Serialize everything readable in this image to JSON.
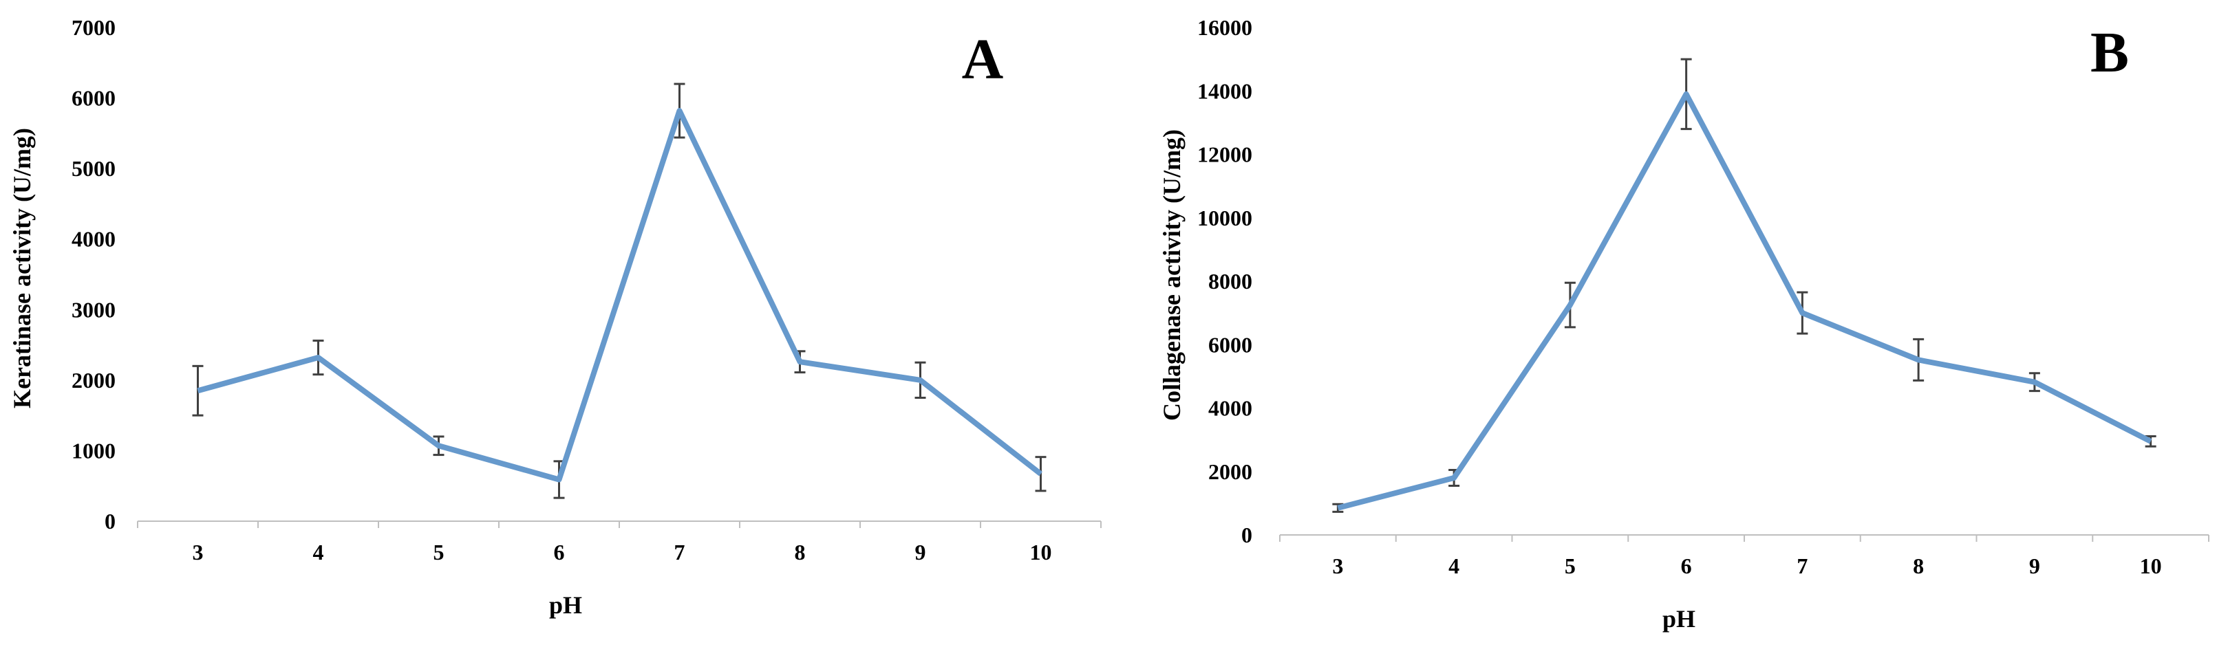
{
  "chart_data": [
    {
      "type": "line",
      "panel_label": "A",
      "xlabel": "pH",
      "ylabel": "Keratinase activity (U/mg)",
      "categories": [
        "3",
        "4",
        "5",
        "6",
        "7",
        "8",
        "9",
        "10"
      ],
      "ylim": [
        0,
        7000
      ],
      "yticks": [
        0,
        1000,
        2000,
        3000,
        4000,
        5000,
        6000,
        7000
      ],
      "grid": false,
      "series": [
        {
          "values": [
            1850,
            2320,
            1070,
            590,
            5820,
            2260,
            2000,
            670
          ],
          "errors": [
            350,
            240,
            130,
            260,
            380,
            150,
            250,
            240
          ],
          "color": "#6699CC"
        }
      ]
    },
    {
      "type": "line",
      "panel_label": "B",
      "xlabel": "pH",
      "ylabel": "Collagenase activity (U/mg)",
      "categories": [
        "3",
        "4",
        "5",
        "6",
        "7",
        "8",
        "9",
        "10"
      ],
      "ylim": [
        0,
        16000
      ],
      "yticks": [
        0,
        2000,
        4000,
        6000,
        8000,
        10000,
        12000,
        14000,
        16000
      ],
      "grid": false,
      "series": [
        {
          "values": [
            850,
            1800,
            7250,
            13900,
            7000,
            5520,
            4820,
            2950
          ],
          "errors": [
            120,
            250,
            700,
            1100,
            650,
            650,
            280,
            160
          ],
          "color": "#6699CC"
        }
      ]
    }
  ]
}
